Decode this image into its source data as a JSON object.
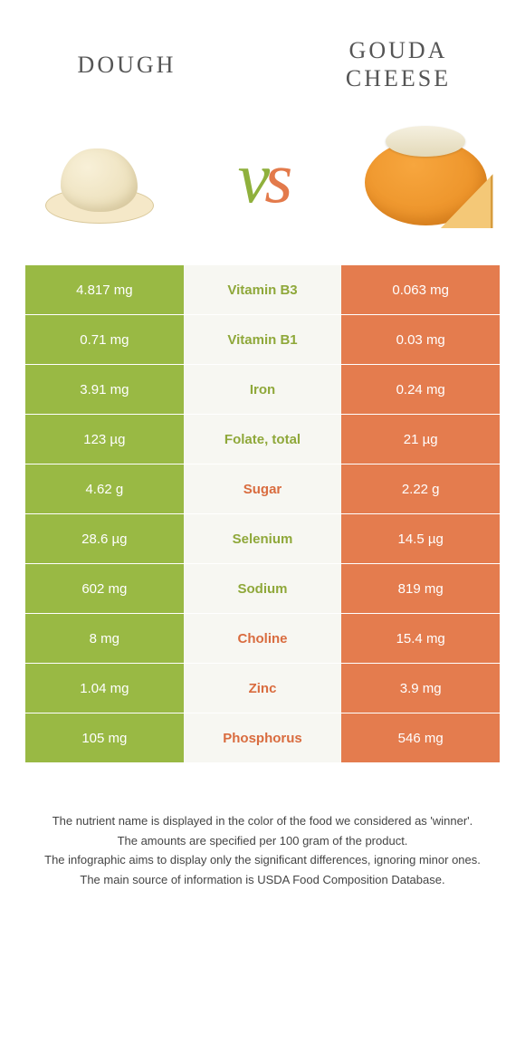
{
  "header": {
    "left_label": "Dough",
    "right_label": "Gouda\ncheese",
    "vs_v": "v",
    "vs_s": "s"
  },
  "colors": {
    "green": "#99b944",
    "orange": "#e47c4e",
    "green_text": "#8fa83a",
    "orange_text": "#d96c3f",
    "mid_bg": "#f7f7f2"
  },
  "rows": [
    {
      "left": "4.817 mg",
      "mid": "Vitamin B3",
      "right": "0.063 mg",
      "winner": "left"
    },
    {
      "left": "0.71 mg",
      "mid": "Vitamin B1",
      "right": "0.03 mg",
      "winner": "left"
    },
    {
      "left": "3.91 mg",
      "mid": "Iron",
      "right": "0.24 mg",
      "winner": "left"
    },
    {
      "left": "123 µg",
      "mid": "Folate, total",
      "right": "21 µg",
      "winner": "left"
    },
    {
      "left": "4.62 g",
      "mid": "Sugar",
      "right": "2.22 g",
      "winner": "right"
    },
    {
      "left": "28.6 µg",
      "mid": "Selenium",
      "right": "14.5 µg",
      "winner": "left"
    },
    {
      "left": "602 mg",
      "mid": "Sodium",
      "right": "819 mg",
      "winner": "left"
    },
    {
      "left": "8 mg",
      "mid": "Choline",
      "right": "15.4 mg",
      "winner": "right"
    },
    {
      "left": "1.04 mg",
      "mid": "Zinc",
      "right": "3.9 mg",
      "winner": "right"
    },
    {
      "left": "105 mg",
      "mid": "Phosphorus",
      "right": "546 mg",
      "winner": "right"
    }
  ],
  "footer": {
    "l1": "The nutrient name is displayed in the color of the food we considered as 'winner'.",
    "l2": "The amounts are specified per 100 gram of the product.",
    "l3": "The infographic aims to display only the significant differences, ignoring minor ones.",
    "l4": "The main source of information is USDA Food Composition Database."
  }
}
